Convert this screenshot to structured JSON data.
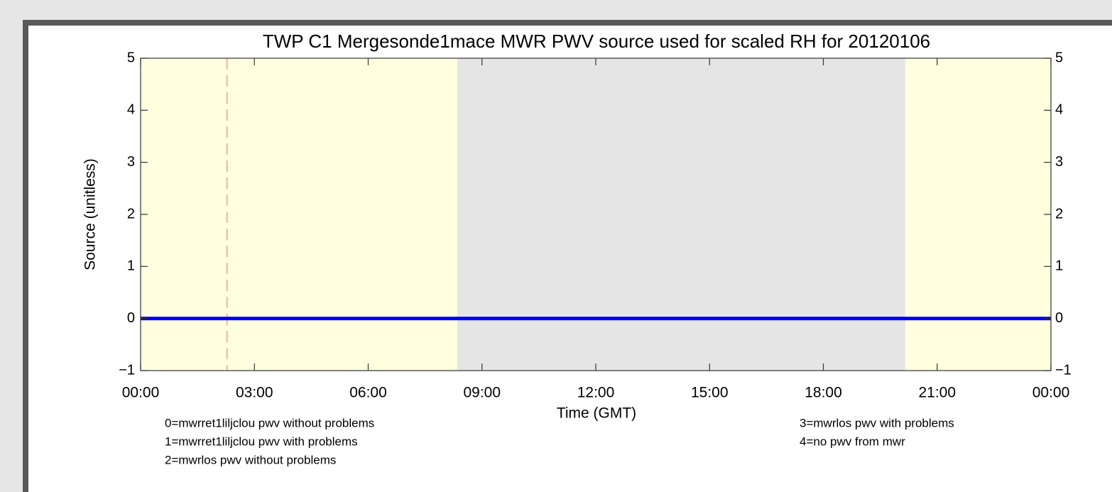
{
  "chart_data": {
    "type": "line",
    "title": "TWP C1 Mergesonde1mace MWR PWV source used for scaled RH for 20120106",
    "xlabel": "Time (GMT)",
    "ylabel": "Source (unitless)",
    "x": [
      0,
      24
    ],
    "values": [
      0,
      0
    ],
    "color": "#0000ff",
    "xlim": [
      0,
      24
    ],
    "xticks": [
      {
        "value": 0,
        "label": "00:00"
      },
      {
        "value": 3,
        "label": "03:00"
      },
      {
        "value": 6,
        "label": "06:00"
      },
      {
        "value": 9,
        "label": "09:00"
      },
      {
        "value": 12,
        "label": "12:00"
      },
      {
        "value": 15,
        "label": "15:00"
      },
      {
        "value": 18,
        "label": "18:00"
      },
      {
        "value": 21,
        "label": "21:00"
      },
      {
        "value": 24,
        "label": "00:00"
      }
    ],
    "ylim": [
      -1,
      5
    ],
    "yticks": [
      {
        "value": -1,
        "label": "−1"
      },
      0,
      1,
      2,
      3,
      4,
      5
    ],
    "shaded_regions": [
      {
        "xmin": 0,
        "xmax": 8.35,
        "color": "#ffffdf"
      },
      {
        "xmin": 8.35,
        "xmax": 20.16,
        "color": "#e5e5e5"
      },
      {
        "xmin": 20.16,
        "xmax": 24,
        "color": "#ffffdf"
      }
    ],
    "vlines": [
      {
        "x": 2.28,
        "color": "#f2c0b0"
      }
    ],
    "notes_left": [
      "0=mwrret1liljclou pwv without problems",
      "1=mwrret1liljclou pwv with problems",
      "2=mwrlos pwv without problems"
    ],
    "notes_right": [
      "3=mwrlos pwv with problems",
      "4=no pwv from mwr"
    ]
  }
}
